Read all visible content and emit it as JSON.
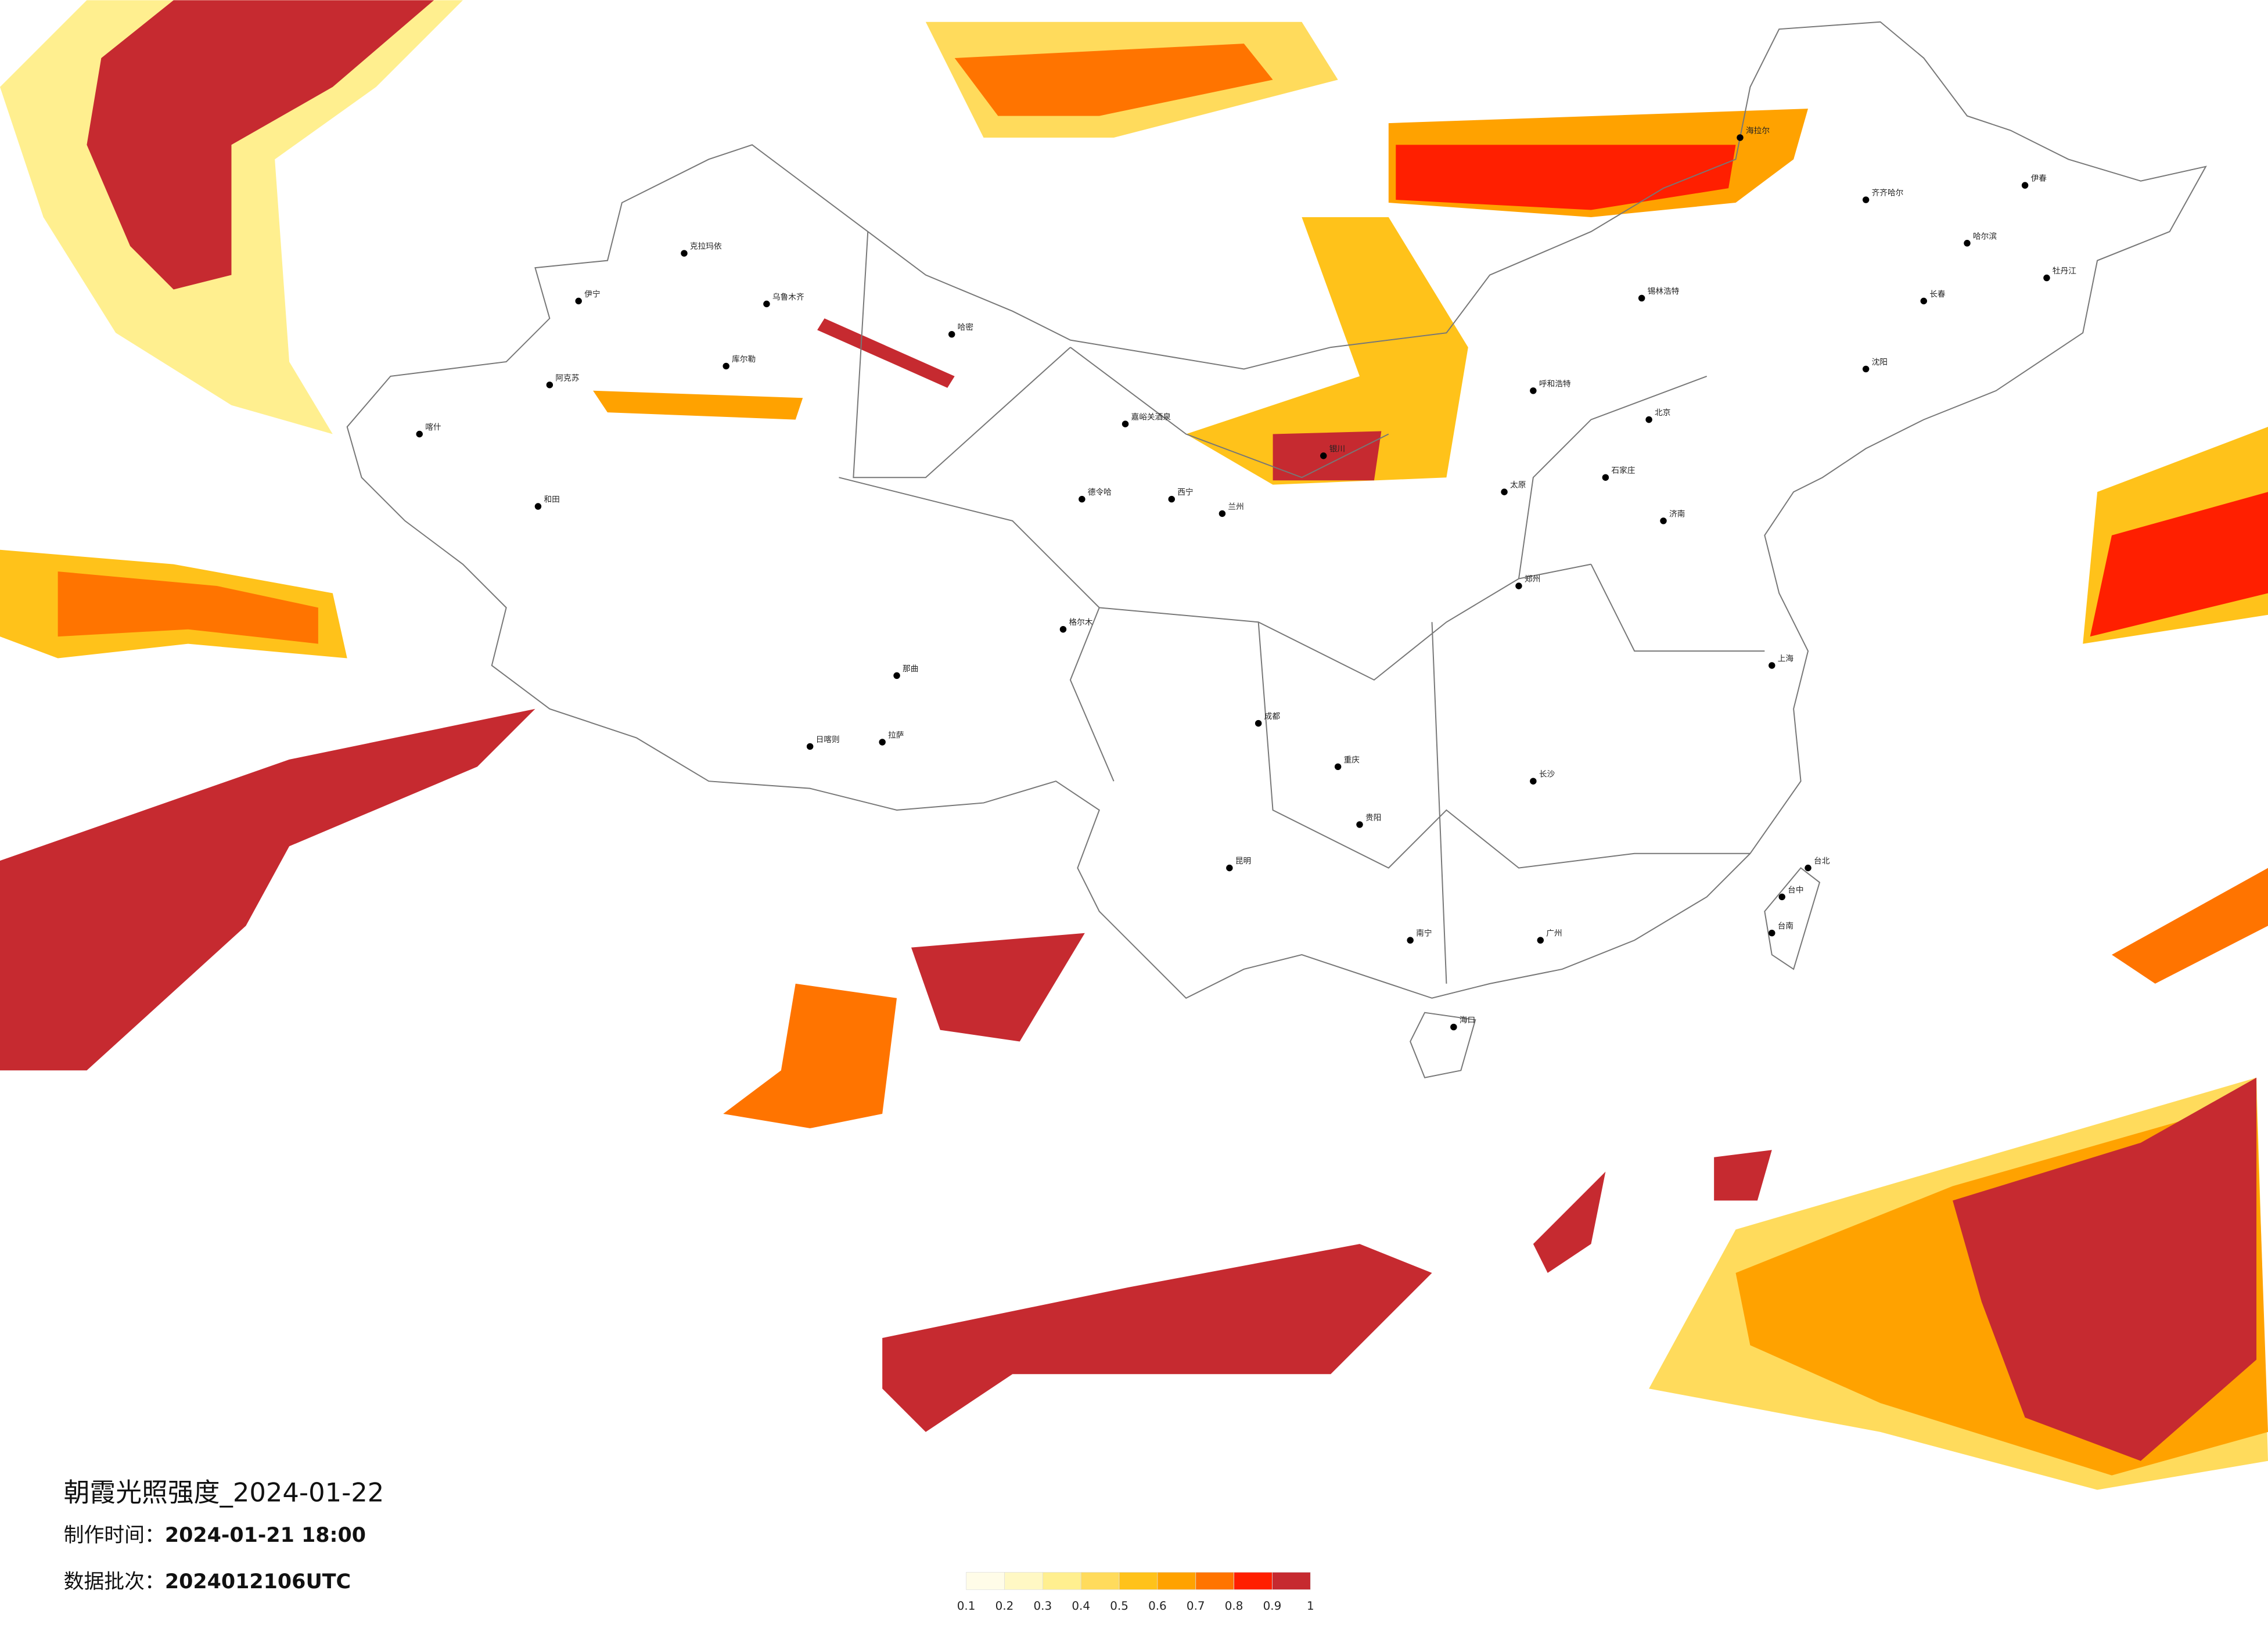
{
  "title": "朝霞光照强度_2024-01-22",
  "made_time": {
    "label": "制作时间：",
    "value": "2024-01-21 18:00"
  },
  "batch": {
    "label": "数据批次：",
    "value": "2024012106UTC"
  },
  "legend": {
    "ticks": [
      0.1,
      0.2,
      0.3,
      0.4,
      0.5,
      0.6,
      0.7,
      0.8,
      0.9,
      1
    ],
    "colors": [
      "#fffce8",
      "#fff8c4",
      "#ffef8f",
      "#ffdb5c",
      "#ffc21a",
      "#ffa200",
      "#ff7400",
      "#ff1f00",
      "#c62a30"
    ]
  },
  "cities": [
    "克拉玛依",
    "乌鲁木齐",
    "伊宁",
    "阿克苏",
    "喀什",
    "和田",
    "哈密",
    "库尔勒",
    "嘉峪关酒泉",
    "德令哈",
    "格尔木",
    "拉萨",
    "日喀则",
    "那曲",
    "呼和浩特",
    "北京",
    "哈尔滨",
    "长春",
    "沈阳",
    "齐齐哈尔",
    "海拉尔",
    "锡林浩特",
    "伊春",
    "牡丹江",
    "兰州",
    "西宁",
    "银川",
    "太原",
    "石家庄",
    "济南",
    "郑州",
    "成都",
    "重庆",
    "贵阳",
    "昆明",
    "南宁",
    "广州",
    "海口",
    "长沙",
    "上海",
    "台北",
    "台中",
    "台南"
  ]
}
